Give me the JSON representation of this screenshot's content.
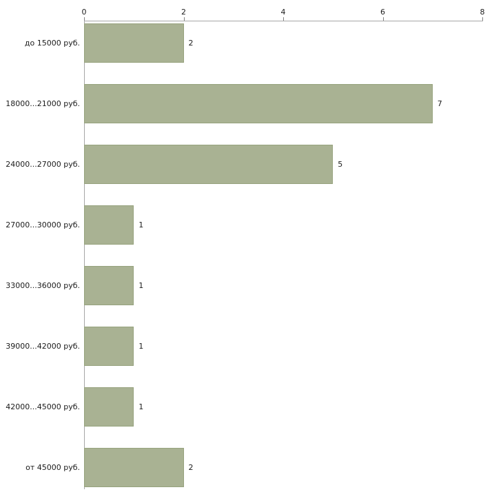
{
  "chart_data": {
    "type": "bar",
    "orientation": "horizontal",
    "title": "",
    "xlabel": "",
    "ylabel": "",
    "xlim": [
      0,
      8
    ],
    "x_ticks": [
      0,
      2,
      4,
      6,
      8
    ],
    "grid": false,
    "legend": "none",
    "categories": [
      "до 15000 руб.",
      "18000...21000 руб.",
      "24000...27000 руб.",
      "27000...30000 руб.",
      "33000...36000 руб.",
      "39000...42000 руб.",
      "42000...45000 руб.",
      "от 45000 руб."
    ],
    "values": [
      2,
      7,
      5,
      1,
      1,
      1,
      1,
      2
    ],
    "bar_labels": [
      "2",
      "7",
      "5",
      "1",
      "1",
      "1",
      "1",
      "2"
    ],
    "colors": {
      "bar_fill": "#a9b293",
      "bar_border": "#96a27d",
      "axis_line": "#a6a6a6",
      "tick_mark": "#808080",
      "text": "#1a1a1a",
      "background": "#ffffff"
    }
  }
}
